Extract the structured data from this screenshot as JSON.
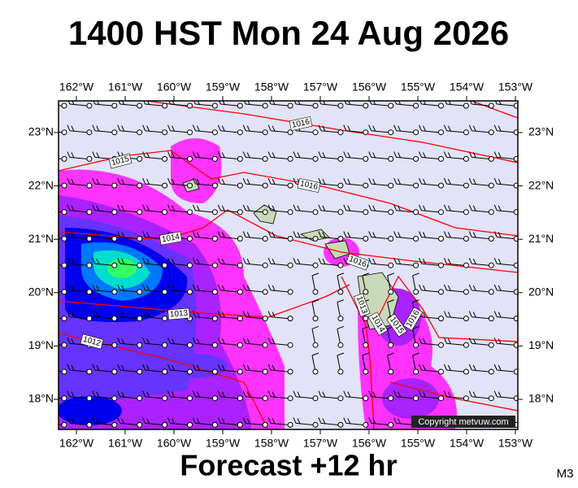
{
  "header": {
    "title": "1400 HST Mon 24 Aug 2026"
  },
  "map": {
    "longitude_labels": [
      "162°W",
      "161°W",
      "160°W",
      "159°W",
      "158°W",
      "157°W",
      "156°W",
      "155°W",
      "154°W",
      "153°W"
    ],
    "latitude_labels": [
      "23°N",
      "22°N",
      "21°N",
      "20°N",
      "19°N",
      "18°N"
    ],
    "isobar_labels": [
      "1016",
      "1015",
      "1016",
      "1014",
      "1016",
      "1013",
      "1012",
      "1013",
      "1014",
      "1015",
      "1016"
    ],
    "copyright": "Copyright metvuw.com"
  },
  "footer": {
    "forecast": "Forecast +12 hr",
    "model": "M3"
  }
}
